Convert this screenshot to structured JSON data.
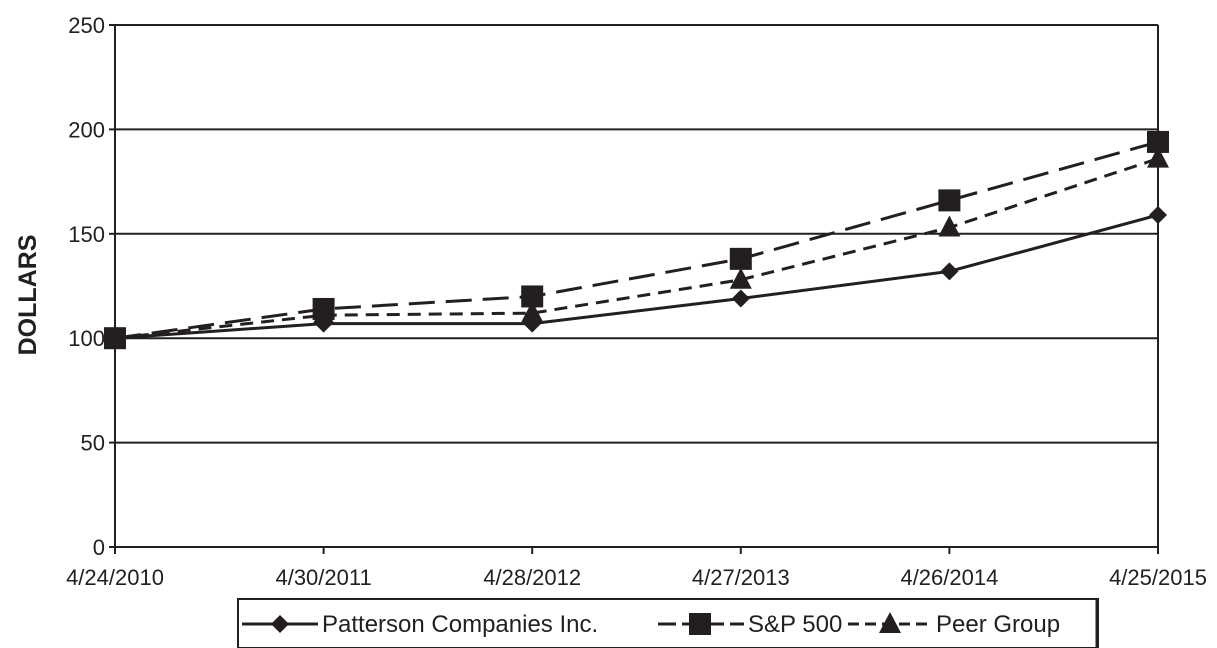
{
  "chart_data": {
    "type": "line",
    "title": "",
    "xlabel": "",
    "ylabel": "DOLLARS",
    "ylim": [
      0,
      250
    ],
    "yticks": [
      0,
      50,
      100,
      150,
      200,
      250
    ],
    "grid": "horizontal",
    "legend_position": "bottom",
    "categories": [
      "4/24/2010",
      "4/30/2011",
      "4/28/2012",
      "4/27/2013",
      "4/26/2014",
      "4/25/2015"
    ],
    "series": [
      {
        "name": "Patterson Companies Inc.",
        "marker": "diamond",
        "line_style": "solid",
        "values": [
          100,
          107,
          107,
          119,
          132,
          159
        ]
      },
      {
        "name": "S&P 500",
        "marker": "square",
        "line_style": "long-dash",
        "values": [
          100,
          114,
          120,
          138,
          166,
          194
        ]
      },
      {
        "name": "Peer Group",
        "marker": "triangle",
        "line_style": "short-dash",
        "values": [
          100,
          111,
          112,
          128,
          153,
          186
        ]
      }
    ],
    "colors": {
      "ink": "#231f20",
      "background": "#ffffff"
    }
  }
}
